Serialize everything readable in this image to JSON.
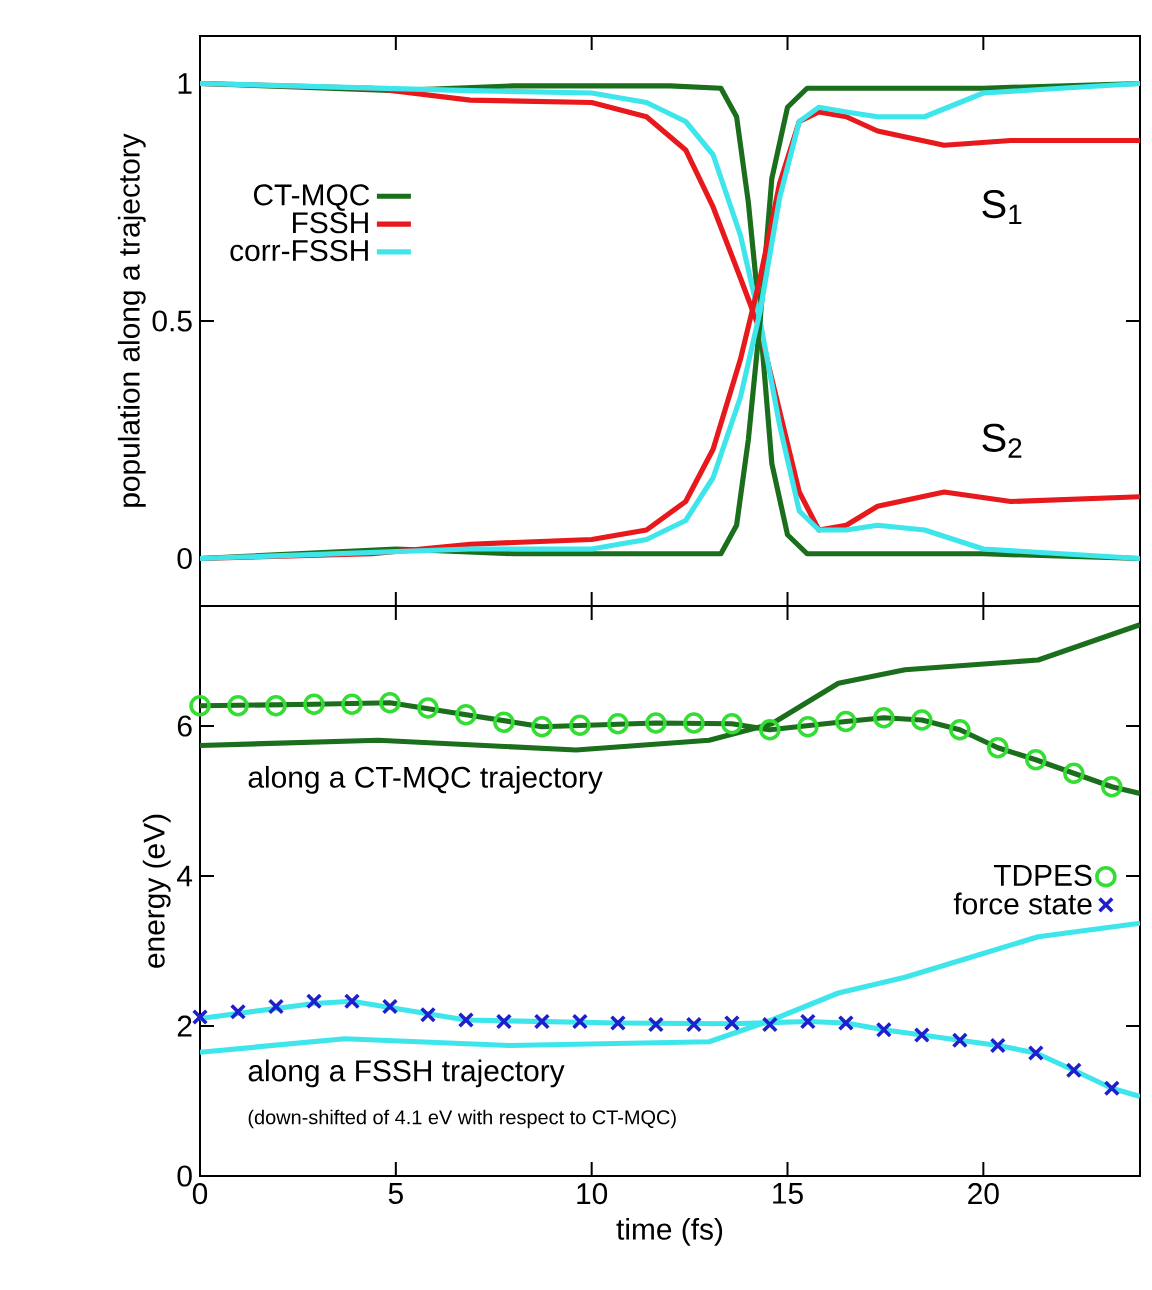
{
  "chart_data": [
    {
      "type": "line",
      "ylabel": "population along a trajectory",
      "xlim": [
        0,
        24
      ],
      "ylim": [
        -0.1,
        1.1
      ],
      "xticks": [
        0,
        5,
        10,
        15,
        20
      ],
      "yticks": [
        0,
        0.5,
        1
      ],
      "tick_labels": "y",
      "legend": "left",
      "annotations": [
        "S$_{1}$",
        "S$_{2}$"
      ],
      "series": [
        {
          "name": "CT-MQC",
          "color": "#1b6e1b",
          "x": [
            0,
            5,
            8,
            12,
            13.3,
            13.7,
            14.0,
            14.3,
            14.6,
            15.0,
            15.5,
            20,
            24
          ],
          "values": [
            1.0,
            0.985,
            0.995,
            0.995,
            0.99,
            0.93,
            0.75,
            0.5,
            0.2,
            0.05,
            0.01,
            0.01,
            0.0
          ]
        },
        {
          "name": "FSSH",
          "color": "#e8191c",
          "x": [
            0,
            4.4,
            6.9,
            10,
            11.4,
            12.4,
            13.1,
            13.8,
            14.3,
            14.8,
            15.3,
            15.8,
            16.5,
            17.3,
            19.0,
            20.7,
            24
          ],
          "values": [
            1,
            0.99,
            0.965,
            0.96,
            0.93,
            0.86,
            0.74,
            0.59,
            0.48,
            0.31,
            0.14,
            0.06,
            0.07,
            0.11,
            0.14,
            0.12,
            0.13
          ]
        },
        {
          "name": "corr-FSSH",
          "color": "#3ee6ec",
          "x": [
            0,
            6.9,
            10,
            11.4,
            12.4,
            13.1,
            13.8,
            14.3,
            14.8,
            15.3,
            15.8,
            16.5,
            17.3,
            18.5,
            20,
            22,
            24
          ],
          "values": [
            1,
            0.985,
            0.98,
            0.96,
            0.92,
            0.85,
            0.68,
            0.5,
            0.28,
            0.1,
            0.06,
            0.06,
            0.07,
            0.06,
            0.02,
            0.01,
            0.0
          ]
        },
        {
          "color": "#1b6e1b",
          "x": [
            0,
            5,
            8,
            12,
            13.3,
            13.7,
            14.0,
            14.3,
            14.6,
            15.0,
            15.5,
            20,
            24
          ],
          "values": [
            0,
            0.02,
            0.01,
            0.01,
            0.01,
            0.07,
            0.25,
            0.5,
            0.8,
            0.95,
            0.99,
            0.99,
            1.0
          ]
        },
        {
          "color": "#e8191c",
          "x": [
            0,
            4.4,
            6.9,
            10,
            11.4,
            12.4,
            13.1,
            13.8,
            14.3,
            14.8,
            15.3,
            15.8,
            16.5,
            17.3,
            19.0,
            20.7,
            24
          ],
          "values": [
            0,
            0.01,
            0.03,
            0.04,
            0.06,
            0.12,
            0.23,
            0.42,
            0.59,
            0.79,
            0.92,
            0.94,
            0.93,
            0.9,
            0.87,
            0.88,
            0.88
          ]
        },
        {
          "color": "#3ee6ec",
          "x": [
            0,
            6.9,
            10,
            11.4,
            12.4,
            13.1,
            13.8,
            14.3,
            14.8,
            15.3,
            15.8,
            16.5,
            17.3,
            18.5,
            20,
            22,
            24
          ],
          "values": [
            0,
            0.02,
            0.02,
            0.04,
            0.08,
            0.17,
            0.34,
            0.52,
            0.76,
            0.92,
            0.95,
            0.94,
            0.93,
            0.93,
            0.98,
            0.99,
            1.0
          ]
        }
      ]
    },
    {
      "type": "line",
      "xlabel": "time (fs)",
      "ylabel": "energy (eV)",
      "xlim": [
        0,
        24
      ],
      "ylim": [
        0,
        7.6
      ],
      "xticks": [
        0,
        5,
        10,
        15,
        20
      ],
      "yticks": [
        0,
        2,
        4,
        6
      ],
      "legend": "right",
      "annotations": [
        "along a CT-MQC trajectory",
        "along a FSSH trajectory",
        "(down-shifted of 4.1 eV with respect to CT-MQC)"
      ],
      "series": [
        {
          "color": "#1b6e1b",
          "x": [
            0,
            4.55,
            9.6,
            13.0,
            14.6,
            16.3,
            18.0,
            21.4,
            24
          ],
          "values": [
            5.74,
            5.81,
            5.68,
            5.81,
            6.03,
            6.57,
            6.75,
            6.88,
            7.35
          ]
        },
        {
          "color": "#1b6e1b",
          "x": [
            0,
            2.91,
            4.85,
            6.79,
            8.73,
            11.64,
            13.58,
            14.55,
            16.49,
            17.46,
            18.43,
            19.4,
            20.37,
            21.34,
            22.31,
            23.28,
            24
          ],
          "values": [
            6.27,
            6.29,
            6.31,
            6.15,
            5.99,
            6.04,
            6.03,
            5.95,
            6.06,
            6.11,
            6.08,
            5.95,
            5.71,
            5.55,
            5.37,
            5.19,
            5.1
          ]
        },
        {
          "color": "#3ee6ec",
          "x": [
            0,
            3.7,
            7.9,
            13.0,
            14.6,
            16.3,
            18.0,
            19.7,
            21.4,
            24
          ],
          "values": [
            1.65,
            1.83,
            1.74,
            1.79,
            2.08,
            2.44,
            2.65,
            2.92,
            3.19,
            3.37
          ]
        },
        {
          "color": "#3ee6ec",
          "x": [
            0,
            2.91,
            3.88,
            6.79,
            10.67,
            13.58,
            15.52,
            16.49,
            17.46,
            18.43,
            19.4,
            20.37,
            21.34,
            22.31,
            23.28,
            24
          ],
          "values": [
            2.1,
            2.3,
            2.33,
            2.08,
            2.04,
            2.03,
            2.06,
            2.04,
            1.95,
            1.88,
            1.81,
            1.74,
            1.64,
            1.41,
            1.17,
            1.06
          ]
        },
        {
          "name": "TDPES",
          "type": "scatter",
          "marker": "circle",
          "color": "#33dd33",
          "x": [
            0,
            0.97,
            1.94,
            2.91,
            3.88,
            4.85,
            5.82,
            6.79,
            7.76,
            8.73,
            9.7,
            10.67,
            11.64,
            12.61,
            13.58,
            14.55,
            15.52,
            16.49,
            17.46,
            18.43,
            19.4,
            20.37,
            21.34,
            22.31,
            23.28
          ],
          "values": [
            6.27,
            6.27,
            6.27,
            6.29,
            6.29,
            6.31,
            6.24,
            6.15,
            6.05,
            5.99,
            6.01,
            6.03,
            6.04,
            6.04,
            6.03,
            5.95,
            5.99,
            6.06,
            6.11,
            6.08,
            5.95,
            5.71,
            5.55,
            5.37,
            5.19
          ]
        },
        {
          "name": "force state",
          "type": "scatter",
          "marker": "cross",
          "color": "#1f1fcc",
          "x": [
            0,
            0.97,
            1.94,
            2.91,
            3.88,
            4.85,
            5.82,
            6.79,
            7.76,
            8.73,
            9.7,
            10.67,
            11.64,
            12.61,
            13.58,
            14.55,
            15.52,
            16.49,
            17.46,
            18.43,
            19.4,
            20.37,
            21.34,
            22.31,
            23.28
          ],
          "values": [
            2.12,
            2.19,
            2.26,
            2.33,
            2.33,
            2.26,
            2.15,
            2.08,
            2.06,
            2.06,
            2.06,
            2.04,
            2.02,
            2.02,
            2.04,
            2.02,
            2.06,
            2.04,
            1.95,
            1.88,
            1.81,
            1.74,
            1.64,
            1.41,
            1.17
          ]
        }
      ]
    }
  ]
}
